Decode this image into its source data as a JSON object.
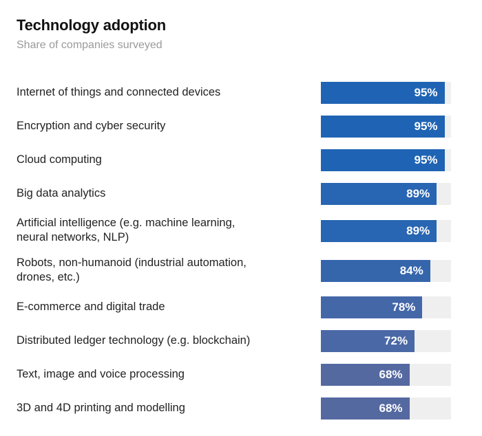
{
  "chart_data": {
    "type": "bar",
    "orientation": "horizontal",
    "title": "Technology adoption",
    "subtitle": "Share of companies surveyed",
    "xlim": [
      0,
      100
    ],
    "grid": false,
    "categories": [
      "Internet of things and connected devices",
      "Encryption and cyber security",
      "Cloud computing",
      "Big data analytics",
      "Artificial intelligence (e.g. machine learning, neural networks, NLP)",
      "Robots, non-humanoid (industrial automation, drones, etc.)",
      "E-commerce and digital trade",
      "Distributed ledger technology (e.g. blockchain)",
      "Text, image and voice processing",
      "3D and 4D printing and modelling"
    ],
    "values": [
      95,
      95,
      95,
      89,
      89,
      84,
      78,
      72,
      68,
      68
    ],
    "value_labels": [
      "95%",
      "95%",
      "95%",
      "89%",
      "89%",
      "84%",
      "78%",
      "72%",
      "68%",
      "68%"
    ],
    "bar_colors": [
      "#1f64b4",
      "#1f64b4",
      "#1f64b4",
      "#2865b2",
      "#2865b2",
      "#3566ac",
      "#4467a8",
      "#4a68a6",
      "#5569a1",
      "#5569a1"
    ],
    "track_color": "#efefef"
  }
}
